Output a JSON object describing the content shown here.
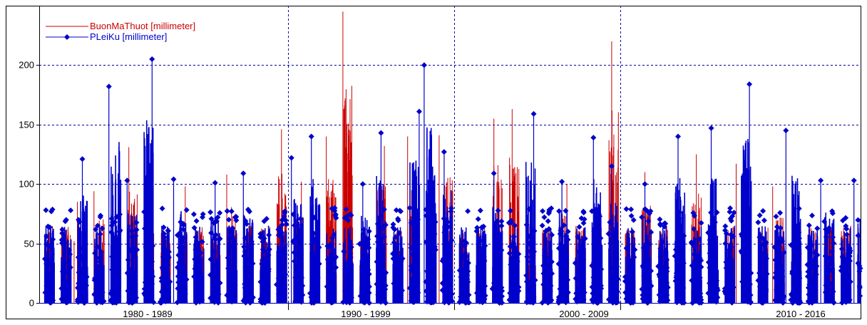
{
  "chart_data": {
    "type": "line",
    "title": "",
    "xlabel": "",
    "ylabel": "",
    "ylim": [
      0,
      250
    ],
    "yticks": [
      0,
      50,
      100,
      150,
      200
    ],
    "grid": true,
    "legend_position": "top-left",
    "x_period_labels": [
      "1980 - 1989",
      "1990 - 1999",
      "2000 - 2009",
      "2010 - 2016"
    ],
    "series": [
      {
        "name": "BuonMaThuot [millimeter]",
        "color": "#cc0000",
        "marker": "none",
        "peaks": [
          {
            "x": 1977.1,
            "y": 52
          },
          {
            "x": 1977.3,
            "y": 85
          },
          {
            "x": 1978.3,
            "y": 94
          },
          {
            "x": 1980.4,
            "y": 131
          },
          {
            "x": 1983.8,
            "y": 98
          },
          {
            "x": 1986.3,
            "y": 108
          },
          {
            "x": 1989.6,
            "y": 146
          },
          {
            "x": 1990.8,
            "y": 102
          },
          {
            "x": 1992.3,
            "y": 140
          },
          {
            "x": 1993.3,
            "y": 245
          },
          {
            "x": 1995.8,
            "y": 132
          },
          {
            "x": 1997.2,
            "y": 140
          },
          {
            "x": 1999.1,
            "y": 141
          },
          {
            "x": 2002.4,
            "y": 155
          },
          {
            "x": 2003.5,
            "y": 163
          },
          {
            "x": 2006.8,
            "y": 100
          },
          {
            "x": 2009.5,
            "y": 220
          },
          {
            "x": 2011.5,
            "y": 110
          },
          {
            "x": 2014.6,
            "y": 125
          },
          {
            "x": 2017.0,
            "y": 117
          },
          {
            "x": 2019.2,
            "y": 98
          }
        ]
      },
      {
        "name": "PLeiKu [millimeter]",
        "color": "#0000cc",
        "marker": "diamond",
        "peaks": [
          {
            "x": 1977.6,
            "y": 121
          },
          {
            "x": 1979.2,
            "y": 182
          },
          {
            "x": 1980.3,
            "y": 103
          },
          {
            "x": 1981.8,
            "y": 205
          },
          {
            "x": 1983.1,
            "y": 104
          },
          {
            "x": 1985.6,
            "y": 101
          },
          {
            "x": 1987.3,
            "y": 109
          },
          {
            "x": 1990.2,
            "y": 122
          },
          {
            "x": 1991.4,
            "y": 140
          },
          {
            "x": 1994.5,
            "y": 100
          },
          {
            "x": 1995.6,
            "y": 143
          },
          {
            "x": 1997.9,
            "y": 161
          },
          {
            "x": 1998.2,
            "y": 200
          },
          {
            "x": 1999.4,
            "y": 127
          },
          {
            "x": 2002.4,
            "y": 109
          },
          {
            "x": 2004.8,
            "y": 159
          },
          {
            "x": 2006.5,
            "y": 102
          },
          {
            "x": 2008.4,
            "y": 139
          },
          {
            "x": 2009.5,
            "y": 115
          },
          {
            "x": 2011.5,
            "y": 100
          },
          {
            "x": 2013.5,
            "y": 140
          },
          {
            "x": 2015.5,
            "y": 147
          },
          {
            "x": 2017.8,
            "y": 184
          },
          {
            "x": 2020.0,
            "y": 145
          },
          {
            "x": 2022.1,
            "y": 103
          },
          {
            "x": 2024.1,
            "y": 103
          }
        ]
      }
    ]
  }
}
